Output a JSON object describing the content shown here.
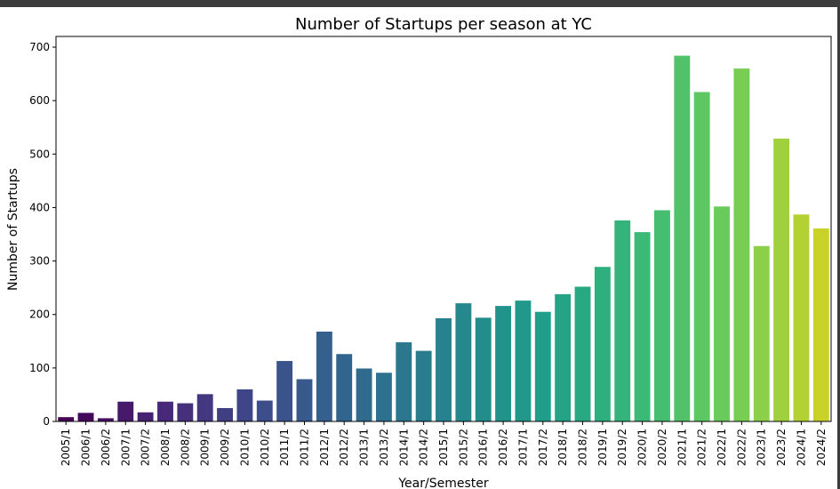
{
  "chart_data": {
    "type": "bar",
    "title": "Number of Startups per season at YC",
    "xlabel": "Year/Semester",
    "ylabel": "Number of Startups",
    "ylim": [
      0,
      720
    ],
    "yticks": [
      0,
      100,
      200,
      300,
      400,
      500,
      600,
      700
    ],
    "grid": false,
    "legend": "none",
    "palette": "viridis",
    "categories": [
      "2005/1",
      "2006/1",
      "2006/2",
      "2007/1",
      "2007/2",
      "2008/1",
      "2008/2",
      "2009/1",
      "2009/2",
      "2010/1",
      "2010/2",
      "2011/1",
      "2011/2",
      "2012/1",
      "2012/2",
      "2013/1",
      "2013/2",
      "2014/1",
      "2014/2",
      "2015/1",
      "2015/2",
      "2016/1",
      "2016/2",
      "2017/1",
      "2017/2",
      "2018/1",
      "2018/2",
      "2019/1",
      "2019/2",
      "2020/1",
      "2020/2",
      "2021/1",
      "2021/2",
      "2022/1",
      "2022/2",
      "2023/1",
      "2023/2",
      "2024/1",
      "2024/2"
    ],
    "values": [
      8,
      16,
      6,
      37,
      17,
      37,
      34,
      51,
      25,
      60,
      39,
      113,
      79,
      168,
      126,
      99,
      91,
      148,
      132,
      193,
      221,
      194,
      216,
      226,
      205,
      238,
      252,
      289,
      376,
      354,
      395,
      684,
      616,
      402,
      660,
      328,
      529,
      387,
      361
    ]
  }
}
